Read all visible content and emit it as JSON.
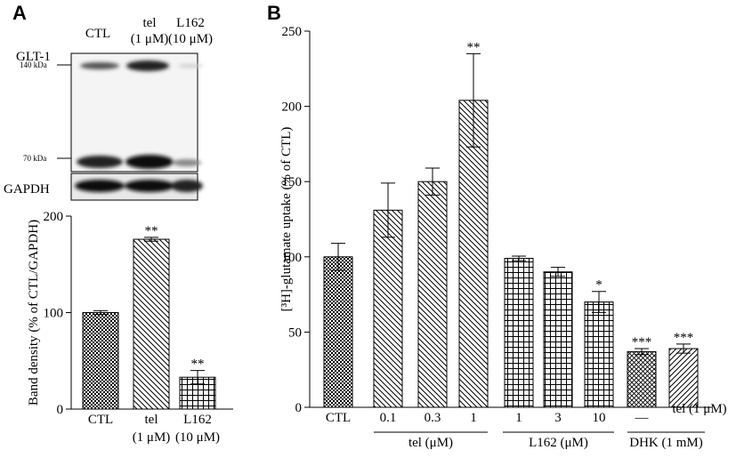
{
  "blot": {
    "panel": "A",
    "target": "GLT-1",
    "markers": [
      "140 kDa",
      "70 kDa"
    ],
    "loading_control": "GAPDH",
    "lanes": [
      [
        "CTL"
      ],
      [
        "tel",
        "(1 μM)"
      ],
      [
        "L162",
        "(10 μM)"
      ]
    ]
  },
  "chart_data": [
    {
      "type": "bar",
      "y_label": "Band density (% of CTL/GAPDH)",
      "categories": [
        [
          "CTL"
        ],
        [
          "tel",
          "(1 μM)"
        ],
        [
          "L162",
          "(10 μM)"
        ]
      ],
      "series": [
        {
          "values": [
            100,
            176,
            33
          ],
          "errors": [
            2,
            2,
            7
          ],
          "patterns": [
            "checker",
            "hatch-back",
            "grid"
          ],
          "significance": [
            null,
            "**",
            "**"
          ]
        }
      ],
      "ylim": [
        0,
        200
      ],
      "yticks": [
        0,
        100,
        200
      ]
    },
    {
      "type": "bar",
      "panel": "B",
      "y_label": "[³H]-glutamate uptake (% of CTL)",
      "categories": [
        [
          "CTL"
        ],
        [
          "0.1"
        ],
        [
          "0.3"
        ],
        [
          "1"
        ],
        [
          "1"
        ],
        [
          "3"
        ],
        [
          "10"
        ],
        [
          "—"
        ],
        [
          "tel (1 μM)"
        ]
      ],
      "groups": [
        "tel (μM)",
        "L162 (μM)",
        "DHK (1 mM)"
      ],
      "series": [
        {
          "values": [
            100,
            131,
            150,
            204,
            99,
            90,
            70,
            37,
            39
          ],
          "errors": [
            9,
            18,
            9,
            31,
            1.5,
            3,
            7,
            2,
            3
          ],
          "patterns": [
            "checker",
            "hatch-back",
            "hatch-back",
            "hatch-back",
            "grid",
            "grid",
            "grid",
            "crosshatch",
            "hatch-fwd"
          ],
          "significance": [
            null,
            null,
            null,
            "**",
            null,
            null,
            "*",
            "***",
            "***"
          ]
        }
      ],
      "ylim": [
        0,
        250
      ],
      "yticks": [
        0,
        50,
        100,
        150,
        200,
        250
      ]
    }
  ]
}
